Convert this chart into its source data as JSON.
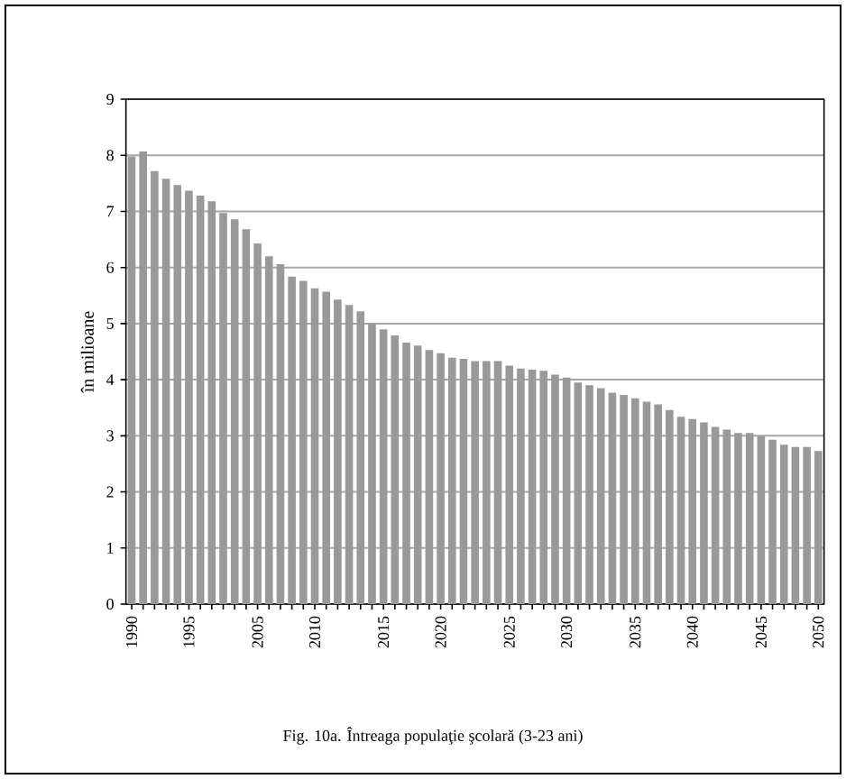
{
  "chart_data": {
    "type": "bar",
    "title": "Fig. 10a. Întreaga populaţie şcolară (3-23 ani)",
    "ylabel": "în milioane",
    "categories": [
      "1990",
      null,
      null,
      null,
      null,
      "1995",
      null,
      null,
      null,
      null,
      null,
      "2005",
      null,
      null,
      null,
      null,
      "2010",
      null,
      null,
      null,
      null,
      null,
      "2015",
      null,
      null,
      null,
      null,
      "2020",
      null,
      null,
      null,
      null,
      null,
      "2025",
      null,
      null,
      null,
      null,
      "2030",
      null,
      null,
      null,
      null,
      null,
      "2035",
      null,
      null,
      null,
      null,
      "2040",
      null,
      null,
      null,
      null,
      null,
      "2045",
      null,
      null,
      null,
      null,
      "2050"
    ],
    "values": [
      7.98,
      8.07,
      7.72,
      7.58,
      7.47,
      7.37,
      7.28,
      7.18,
      6.97,
      6.86,
      6.68,
      6.43,
      6.2,
      6.06,
      5.84,
      5.76,
      5.63,
      5.57,
      5.43,
      5.33,
      5.22,
      5.01,
      4.9,
      4.79,
      4.66,
      4.61,
      4.53,
      4.47,
      4.39,
      4.37,
      4.33,
      4.33,
      4.33,
      4.25,
      4.2,
      4.18,
      4.16,
      4.09,
      4.04,
      3.95,
      3.9,
      3.85,
      3.77,
      3.73,
      3.67,
      3.61,
      3.56,
      3.46,
      3.34,
      3.3,
      3.24,
      3.16,
      3.11,
      3.05,
      3.05,
      2.99,
      2.93,
      2.84,
      2.8,
      2.8,
      2.73
    ],
    "color": "#999999",
    "ylim": [
      0,
      9
    ],
    "yticks": [
      0,
      1,
      2,
      3,
      4,
      5,
      6,
      7,
      8,
      9
    ],
    "grid": "y"
  }
}
